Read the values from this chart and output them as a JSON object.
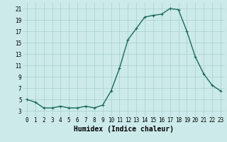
{
  "x": [
    0,
    1,
    2,
    3,
    4,
    5,
    6,
    7,
    8,
    9,
    10,
    11,
    12,
    13,
    14,
    15,
    16,
    17,
    18,
    19,
    20,
    21,
    22,
    23
  ],
  "y": [
    5,
    4.5,
    3.5,
    3.5,
    3.8,
    3.5,
    3.5,
    3.8,
    3.5,
    4,
    6.5,
    10.5,
    15.5,
    17.5,
    19.5,
    19.8,
    20.0,
    21,
    20.8,
    17,
    12.5,
    9.5,
    7.5,
    6.5
  ],
  "line_color": "#1a6b5a",
  "marker": "+",
  "marker_size": 3,
  "marker_linewidth": 0.8,
  "bg_color": "#cceaea",
  "grid_color": "#aacece",
  "xlabel": "Humidex (Indice chaleur)",
  "xlim": [
    -0.5,
    23.5
  ],
  "ylim": [
    2,
    22
  ],
  "yticks": [
    3,
    5,
    7,
    9,
    11,
    13,
    15,
    17,
    19,
    21
  ],
  "xticks": [
    0,
    1,
    2,
    3,
    4,
    5,
    6,
    7,
    8,
    9,
    10,
    11,
    12,
    13,
    14,
    15,
    16,
    17,
    18,
    19,
    20,
    21,
    22,
    23
  ],
  "tick_fontsize": 5.5,
  "xlabel_fontsize": 7,
  "linewidth": 1.0
}
